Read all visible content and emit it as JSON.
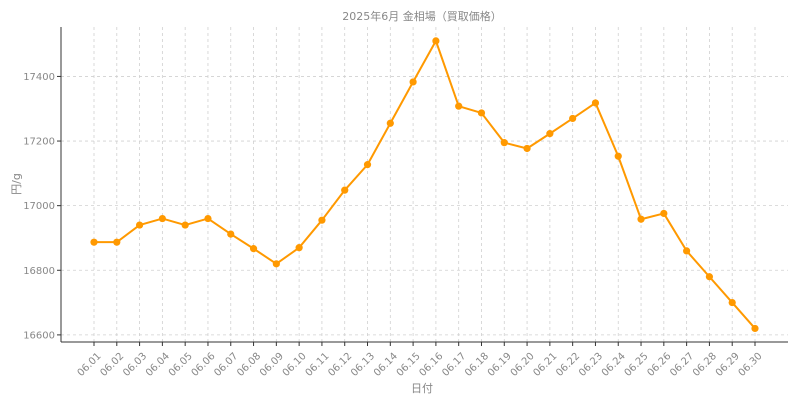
{
  "chart_data": {
    "type": "line",
    "title": "2025年6月 金相場（買取価格）",
    "xlabel": "日付",
    "ylabel": "円/g",
    "categories": [
      "06.01",
      "06.02",
      "06.03",
      "06.04",
      "06.05",
      "06.06",
      "06.07",
      "06.08",
      "06.09",
      "06.10",
      "06.11",
      "06.12",
      "06.13",
      "06.14",
      "06.15",
      "06.16",
      "06.17",
      "06.18",
      "06.19",
      "06.20",
      "06.21",
      "06.22",
      "06.23",
      "06.24",
      "06.25",
      "06.26",
      "06.27",
      "06.28",
      "06.29",
      "06.30"
    ],
    "series": [
      {
        "color": "#ff9900",
        "values": [
          16887,
          16887,
          16940,
          16960,
          16940,
          16960,
          16912,
          16867,
          16820,
          16870,
          16955,
          17048,
          17127,
          17255,
          17383,
          17510,
          17308,
          17287,
          17195,
          17177,
          17223,
          17270,
          17318,
          17153,
          16958,
          16976,
          16860,
          16780,
          16700,
          16620
        ]
      }
    ],
    "yticks": [
      16600,
      16800,
      17000,
      17200,
      17400
    ],
    "ylim": [
      16578,
      17553
    ],
    "grid": true
  }
}
